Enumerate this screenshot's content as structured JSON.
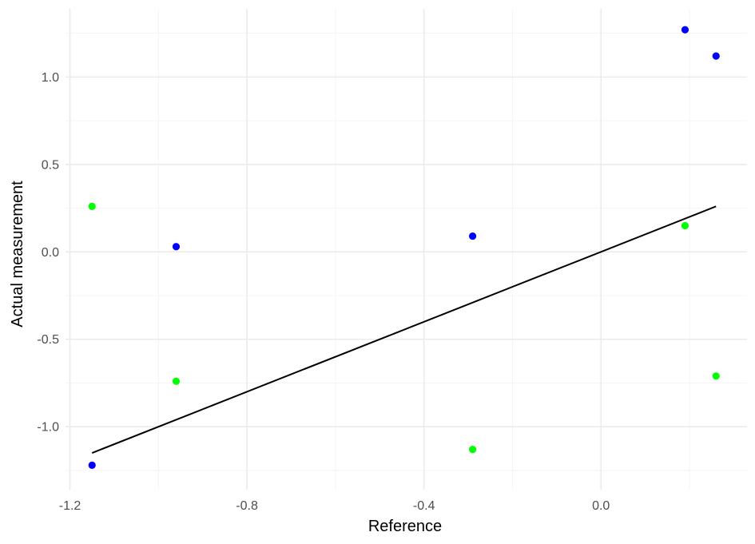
{
  "chart_data": {
    "type": "scatter",
    "xlabel": "Reference",
    "ylabel": "Actual measurement",
    "xlim": [
      -1.21,
      0.33
    ],
    "ylim": [
      -1.36,
      1.39
    ],
    "x_ticks": [
      -1.2,
      -0.8,
      -0.4,
      0.0
    ],
    "x_tick_labels": [
      "-1.2",
      "-0.8",
      "-0.4",
      "0.0"
    ],
    "y_ticks": [
      -1.0,
      -0.5,
      0.0,
      0.5,
      1.0
    ],
    "y_tick_labels": [
      "-1.0",
      "-0.5",
      "0.0",
      "0.5",
      "1.0"
    ],
    "grid": true,
    "legend": "none",
    "series": [
      {
        "color": "#0000ff",
        "points": [
          {
            "x": -1.15,
            "y": -1.22
          },
          {
            "x": -0.96,
            "y": 0.03
          },
          {
            "x": -0.29,
            "y": 0.09
          },
          {
            "x": 0.19,
            "y": 1.27
          },
          {
            "x": 0.26,
            "y": 1.12
          }
        ]
      },
      {
        "color": "#00ff00",
        "points": [
          {
            "x": -1.15,
            "y": 0.26
          },
          {
            "x": -0.96,
            "y": -0.74
          },
          {
            "x": -0.29,
            "y": -1.13
          },
          {
            "x": 0.19,
            "y": 0.15
          },
          {
            "x": 0.26,
            "y": -0.71
          }
        ]
      }
    ],
    "fit_line": {
      "color": "#000000",
      "points": [
        {
          "x": -1.15,
          "y": -1.15
        },
        {
          "x": 0.26,
          "y": 0.26
        }
      ]
    }
  }
}
